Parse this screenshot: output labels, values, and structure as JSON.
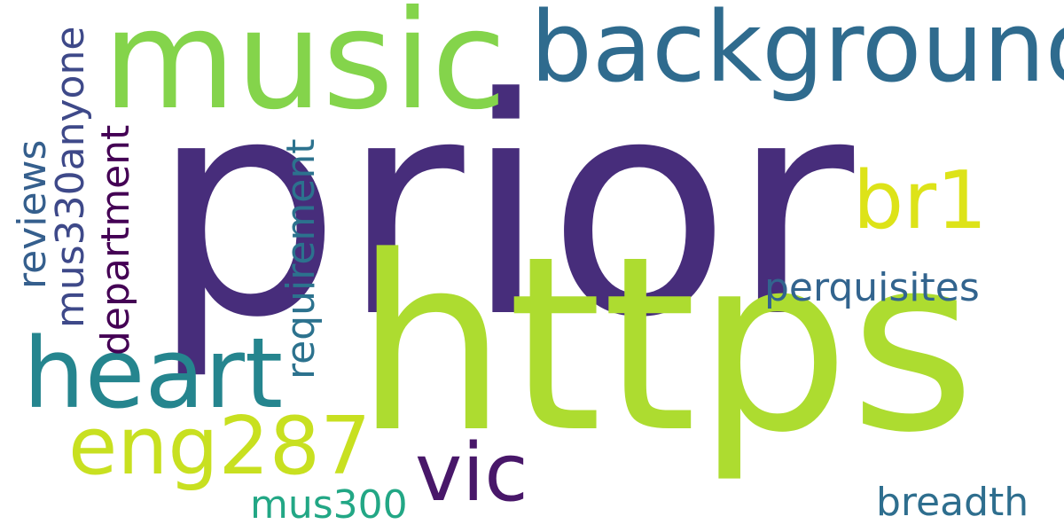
{
  "words": [
    {
      "key": "prior",
      "text": "prior",
      "color": "#472d7b"
    },
    {
      "key": "https",
      "text": "https",
      "color": "#addc30"
    },
    {
      "key": "music",
      "text": "music",
      "color": "#84d44b"
    },
    {
      "key": "background",
      "text": "background",
      "color": "#2f6b8e"
    },
    {
      "key": "heart",
      "text": "heart",
      "color": "#25858e"
    },
    {
      "key": "eng287",
      "text": "eng287",
      "color": "#c8e020"
    },
    {
      "key": "vic",
      "text": "vic",
      "color": "#481769"
    },
    {
      "key": "br1",
      "text": "br1",
      "color": "#dde318"
    },
    {
      "key": "perquisites",
      "text": "perquisites",
      "color": "#32648e"
    },
    {
      "key": "breadth",
      "text": "breadth",
      "color": "#2e6e8e"
    },
    {
      "key": "mus300",
      "text": "mus300",
      "color": "#22a785"
    },
    {
      "key": "department",
      "text": "department",
      "color": "#440154"
    },
    {
      "key": "requirement",
      "text": "requirement",
      "color": "#2c728e"
    },
    {
      "key": "mus330anyone",
      "text": "mus330anyone",
      "color": "#3e4989"
    },
    {
      "key": "reviews",
      "text": "reviews",
      "color": "#355f8d"
    }
  ]
}
